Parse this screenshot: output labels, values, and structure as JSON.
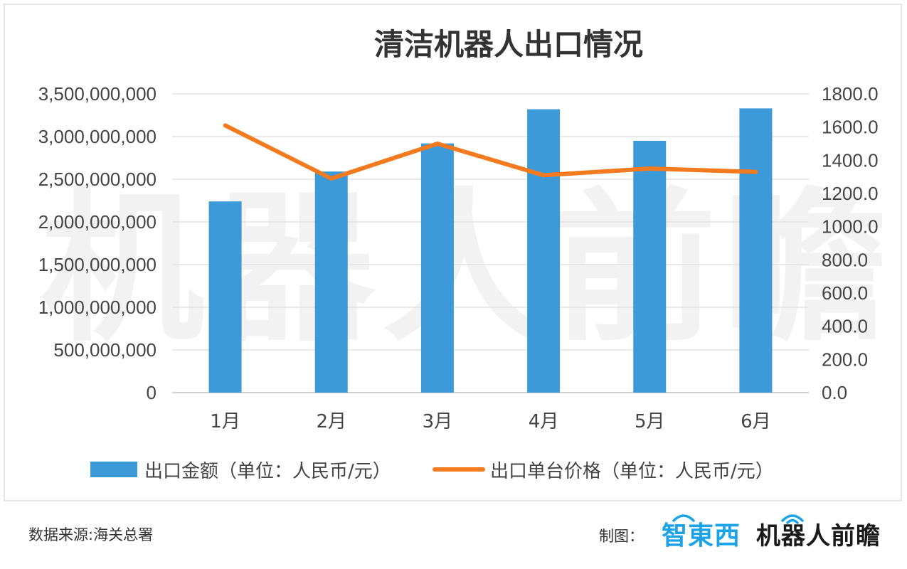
{
  "chart_data": {
    "type": "bar+line",
    "title": "清洁机器人出口情况",
    "categories": [
      "1月",
      "2月",
      "3月",
      "4月",
      "5月",
      "6月"
    ],
    "series": [
      {
        "name": "出口金额（单位：人民币/元）",
        "type": "bar",
        "axis": "left",
        "color": "#3d9ad8",
        "values": [
          2240000000,
          2590000000,
          2920000000,
          3320000000,
          2950000000,
          3330000000
        ]
      },
      {
        "name": "出口单台价格（单位：人民币/元）",
        "type": "line",
        "axis": "right",
        "color": "#f47a20",
        "values": [
          1610,
          1290,
          1500,
          1310,
          1350,
          1330
        ]
      }
    ],
    "y_left": {
      "min": 0,
      "max": 3500000000,
      "step": 500000000,
      "tick_labels": [
        "0",
        "500,000,000",
        "1,000,000,000",
        "1,500,000,000",
        "2,000,000,000",
        "2,500,000,000",
        "3,000,000,000",
        "3,500,000,000"
      ]
    },
    "y_right": {
      "min": 0,
      "max": 1800,
      "step": 200,
      "tick_labels": [
        "0.0",
        "200.0",
        "400.0",
        "600.0",
        "800.0",
        "1000.0",
        "1200.0",
        "1400.0",
        "1600.0",
        "1800.0"
      ]
    },
    "grid": true,
    "legend_position": "bottom",
    "watermark": "机器人前瞻"
  },
  "footer": {
    "source": "数据来源:海关总署",
    "credit_label": "制图：",
    "logo_1": "智東西",
    "logo_2": "机器人前瞻"
  }
}
